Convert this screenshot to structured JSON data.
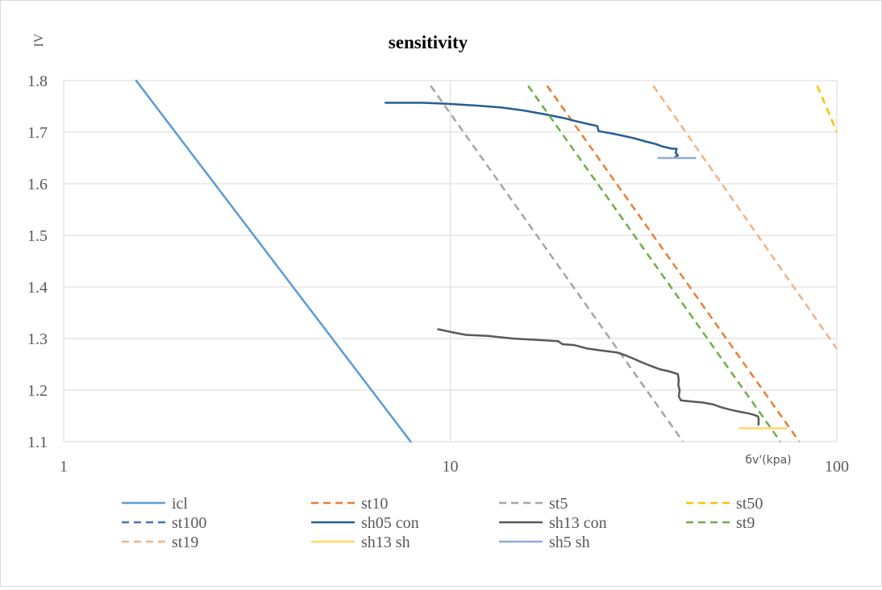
{
  "chart_data": {
    "type": "line",
    "title": "sensitivity",
    "ylabel": "IV",
    "xlabel": "бv'(kpa)",
    "x_scale": "log",
    "xlim": [
      1,
      100
    ],
    "ylim": [
      1.1,
      1.8
    ],
    "x_ticks": [
      1,
      10,
      100
    ],
    "x_tick_labels": [
      "1",
      "10",
      "100"
    ],
    "y_ticks": [
      1.1,
      1.2,
      1.3,
      1.4,
      1.5,
      1.6,
      1.7,
      1.8
    ],
    "y_tick_labels": [
      "1.1",
      "1.2",
      "1.3",
      "1.4",
      "1.5",
      "1.6",
      "1.7",
      "1.8"
    ],
    "grid": true,
    "legend_position": "bottom",
    "series": [
      {
        "name": "icl",
        "color": "#5b9bd5",
        "dash": "solid",
        "points": [
          [
            1.54,
            1.8
          ],
          [
            7.9,
            1.1
          ]
        ]
      },
      {
        "name": "st10",
        "color": "#ed7d31",
        "dash": "dash",
        "points": [
          [
            17.8,
            1.79
          ],
          [
            80.0,
            1.1
          ]
        ]
      },
      {
        "name": "st5",
        "color": "#a5a5a5",
        "dash": "dash",
        "points": [
          [
            8.9,
            1.79
          ],
          [
            40.0,
            1.1
          ]
        ]
      },
      {
        "name": "st50",
        "color": "#ffc000",
        "dash": "dash",
        "points": [
          [
            89.0,
            1.79
          ],
          [
            100.0,
            1.7
          ]
        ]
      },
      {
        "name": "st100",
        "color": "#4472c4",
        "dash": "dash",
        "points": []
      },
      {
        "name": "sh05 con",
        "color": "#255e91",
        "dash": "solid",
        "points": [
          [
            6.8,
            1.757
          ],
          [
            8.5,
            1.757
          ],
          [
            9.8,
            1.755
          ],
          [
            11.5,
            1.752
          ],
          [
            13.5,
            1.748
          ],
          [
            15.5,
            1.742
          ],
          [
            17.5,
            1.735
          ],
          [
            19.5,
            1.728
          ],
          [
            21.5,
            1.72
          ],
          [
            23.0,
            1.715
          ],
          [
            24.0,
            1.712
          ],
          [
            24.2,
            1.702
          ],
          [
            26.0,
            1.698
          ],
          [
            28.0,
            1.693
          ],
          [
            30.0,
            1.688
          ],
          [
            32.0,
            1.682
          ],
          [
            34.0,
            1.677
          ],
          [
            35.5,
            1.672
          ],
          [
            37.5,
            1.668
          ],
          [
            38.5,
            1.668
          ],
          [
            38.3,
            1.66
          ],
          [
            38.8,
            1.655
          ],
          [
            38.2,
            1.652
          ]
        ]
      },
      {
        "name": "sh13 con",
        "color": "#595959",
        "dash": "solid",
        "points": [
          [
            9.3,
            1.318
          ],
          [
            10.3,
            1.311
          ],
          [
            11.0,
            1.307
          ],
          [
            12.5,
            1.305
          ],
          [
            14.5,
            1.3
          ],
          [
            17.0,
            1.297
          ],
          [
            19.0,
            1.295
          ],
          [
            19.5,
            1.289
          ],
          [
            21.0,
            1.287
          ],
          [
            22.5,
            1.281
          ],
          [
            24.5,
            1.277
          ],
          [
            27.0,
            1.273
          ],
          [
            28.5,
            1.267
          ],
          [
            30.0,
            1.26
          ],
          [
            31.5,
            1.253
          ],
          [
            33.5,
            1.245
          ],
          [
            35.0,
            1.24
          ],
          [
            37.0,
            1.236
          ],
          [
            38.8,
            1.231
          ],
          [
            39.0,
            1.22
          ],
          [
            38.9,
            1.21
          ],
          [
            39.2,
            1.2
          ],
          [
            39.0,
            1.188
          ],
          [
            39.5,
            1.18
          ],
          [
            42.0,
            1.178
          ],
          [
            45.0,
            1.176
          ],
          [
            48.0,
            1.172
          ],
          [
            50.0,
            1.167
          ],
          [
            53.0,
            1.162
          ],
          [
            56.0,
            1.158
          ],
          [
            59.0,
            1.155
          ],
          [
            61.0,
            1.152
          ],
          [
            62.5,
            1.149
          ],
          [
            62.8,
            1.143
          ],
          [
            62.7,
            1.133
          ]
        ]
      },
      {
        "name": "st9",
        "color": "#70ad47",
        "dash": "dash",
        "points": [
          [
            15.9,
            1.79
          ],
          [
            71.5,
            1.1
          ]
        ]
      },
      {
        "name": "st19",
        "color": "#f4b183",
        "dash": "dash",
        "points": [
          [
            33.5,
            1.79
          ],
          [
            100.0,
            1.28
          ]
        ]
      },
      {
        "name": "sh13 sh",
        "color": "#ffd966",
        "dash": "solid",
        "points": [
          [
            56.0,
            1.126
          ],
          [
            74.0,
            1.126
          ]
        ]
      },
      {
        "name": "sh5 sh",
        "color": "#8faadc",
        "dash": "solid",
        "points": [
          [
            34.5,
            1.65
          ],
          [
            43.0,
            1.65
          ]
        ]
      }
    ]
  }
}
